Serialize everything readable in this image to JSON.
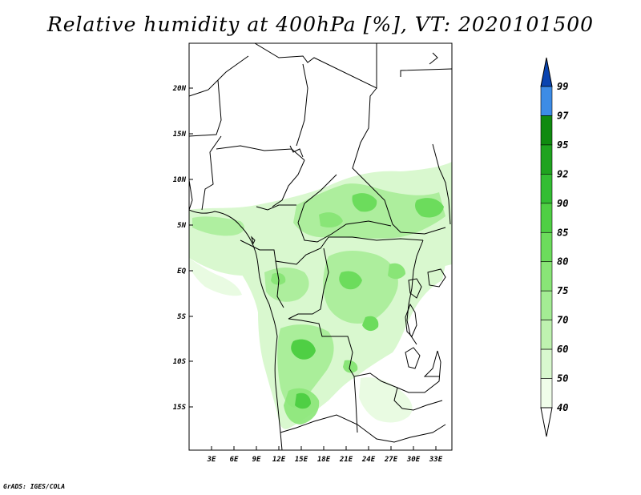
{
  "title": "Relative humidity at 400hPa [%], VT: 2020101500",
  "credit": "GrADS: IGES/COLA",
  "map": {
    "lat_ticks": [
      "20N",
      "15N",
      "10N",
      "5N",
      "EQ",
      "5S",
      "10S",
      "15S"
    ],
    "lon_ticks": [
      "3E",
      "6E",
      "9E",
      "12E",
      "15E",
      "18E",
      "21E",
      "24E",
      "27E",
      "30E",
      "33E"
    ]
  },
  "colorbar": {
    "levels": [
      "40",
      "50",
      "60",
      "70",
      "75",
      "80",
      "85",
      "90",
      "92",
      "95",
      "97",
      "99"
    ],
    "colors": [
      "#f0fdea",
      "#d9f8cf",
      "#bff2b0",
      "#a4ec94",
      "#89e577",
      "#6cdc5c",
      "#4fcf44",
      "#33bd33",
      "#1fa31f",
      "#108a10",
      "#3d8ce6",
      "#1a64d3",
      "#0a44b0",
      "#ffffff"
    ]
  }
}
